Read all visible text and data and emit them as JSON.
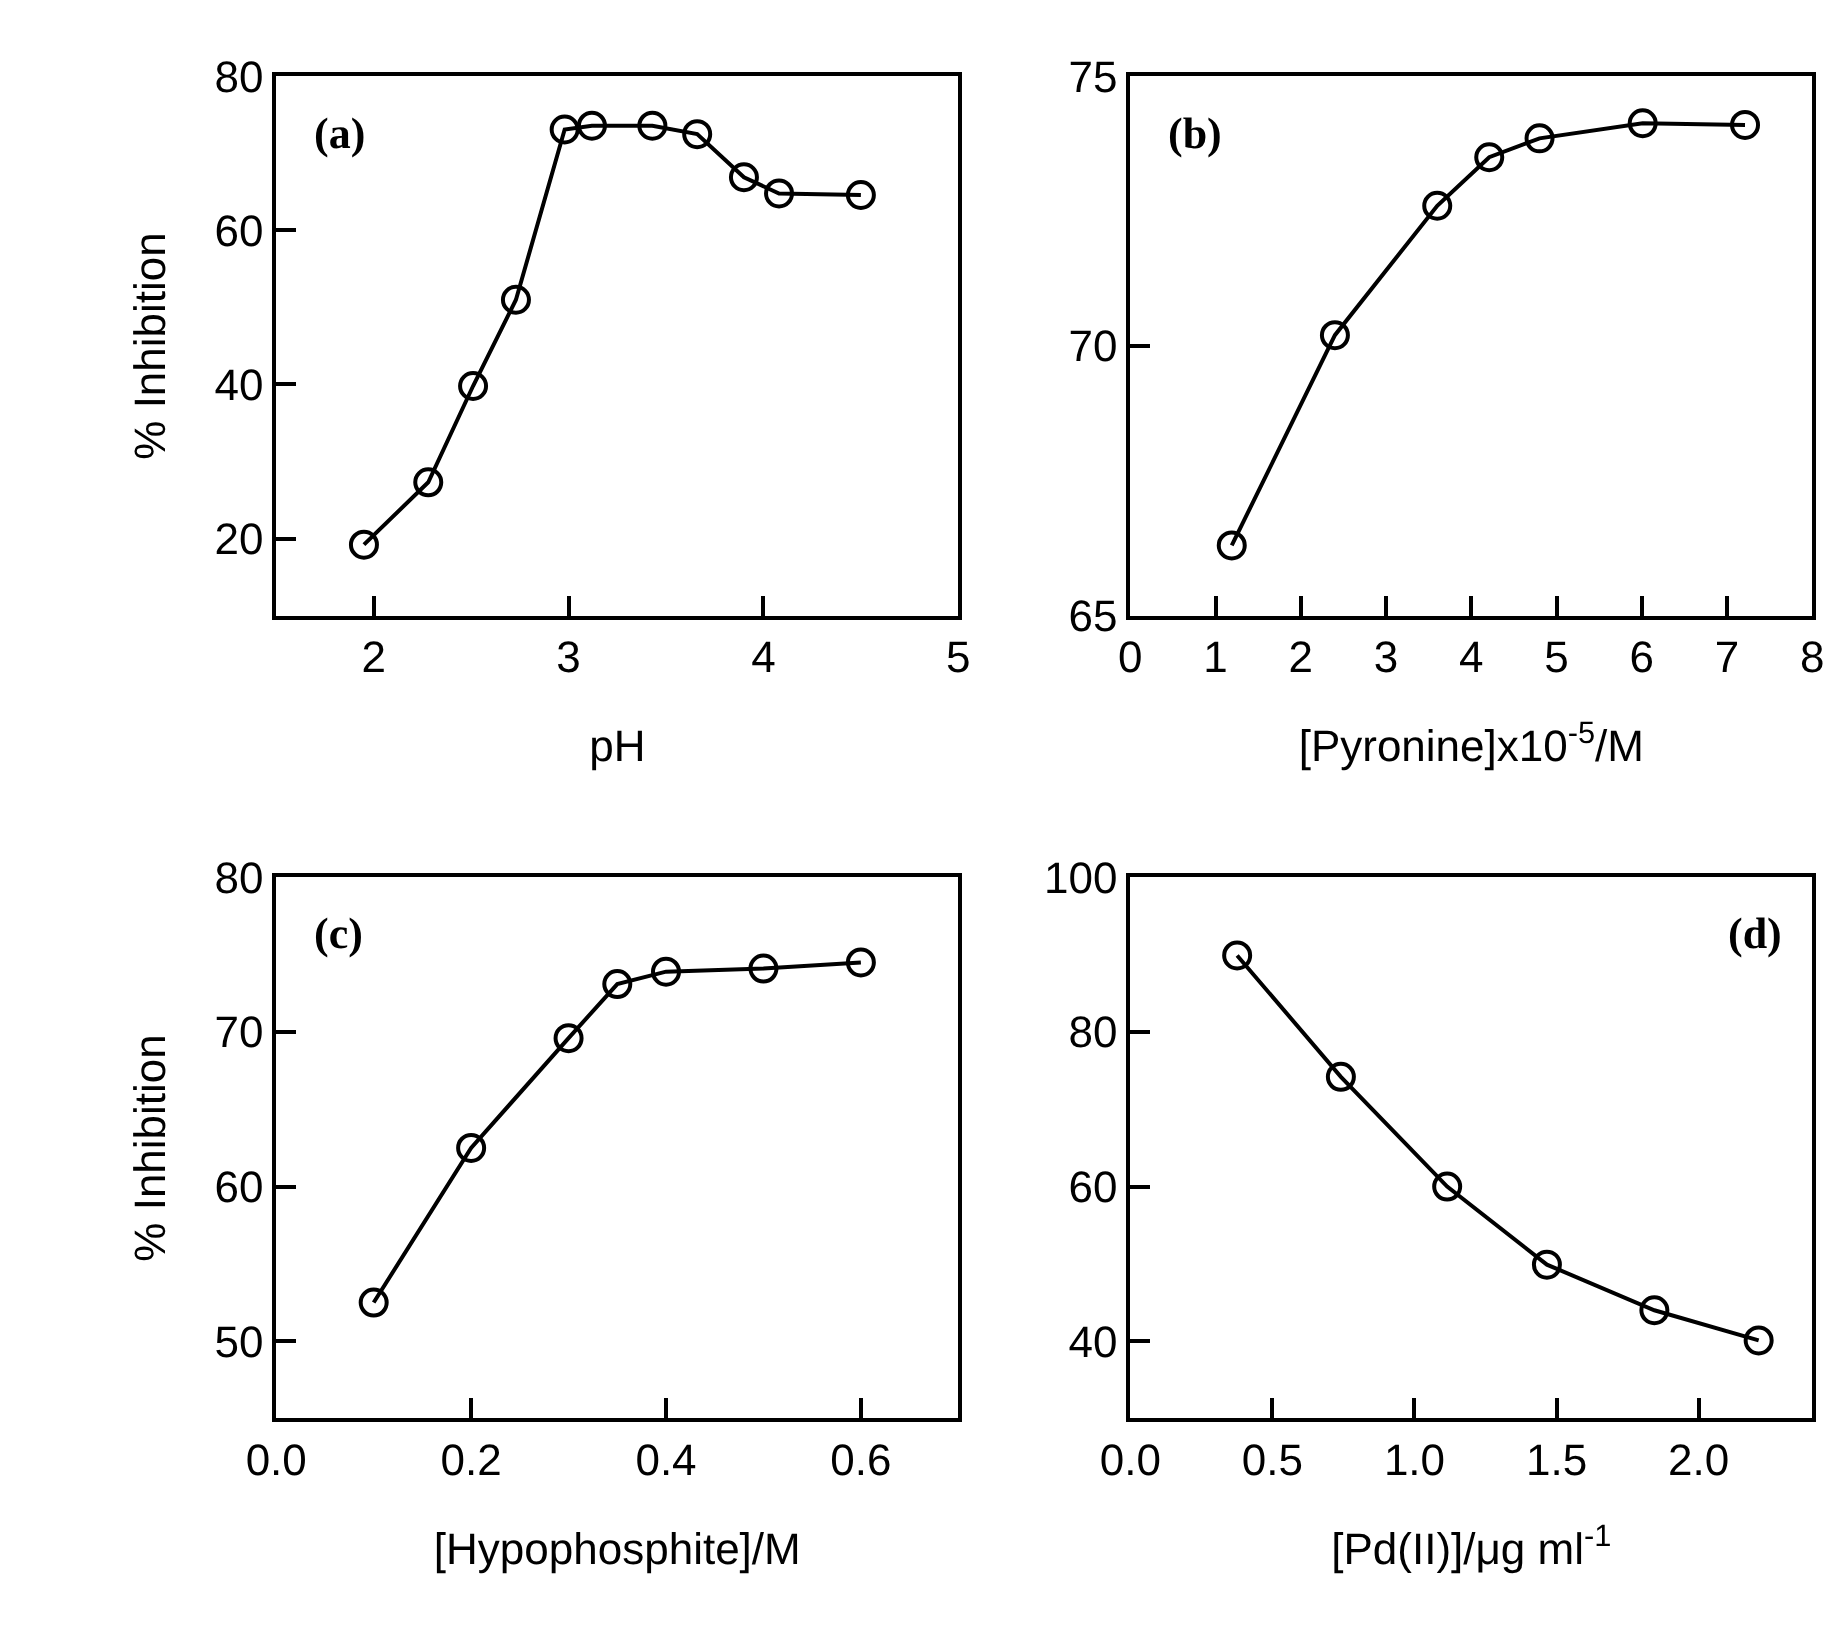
{
  "chart_data": [
    {
      "type": "line",
      "xlabel": "pH",
      "ylabel": "% Inhibition",
      "annotations": [
        "(a)"
      ],
      "x": [
        1.95,
        2.28,
        2.51,
        2.73,
        2.98,
        3.12,
        3.43,
        3.66,
        3.9,
        4.08,
        4.5
      ],
      "series": [
        {
          "color": "#000000",
          "values": [
            19.2,
            27.3,
            39.8,
            51.0,
            73.1,
            73.6,
            73.6,
            72.5,
            66.9,
            64.8,
            64.6
          ]
        }
      ],
      "xlim": [
        1.5,
        5
      ],
      "xticks": [
        2,
        3,
        4,
        5
      ],
      "ylim": [
        10,
        80
      ],
      "yticks": [
        20,
        40,
        60,
        80
      ],
      "marker": "circle",
      "line_style": "solid"
    },
    {
      "type": "line",
      "xlabel": "[Pyronine]x10$^{-5}$/M",
      "annotations": [
        "(b)"
      ],
      "x": [
        1.19,
        2.4,
        3.6,
        4.21,
        4.8,
        6.01,
        7.21
      ],
      "series": [
        {
          "color": "#000000",
          "values": [
            66.3,
            70.2,
            72.6,
            73.5,
            73.85,
            74.13,
            74.1
          ]
        }
      ],
      "xlim": [
        0,
        8
      ],
      "xticks": [
        0,
        1,
        2,
        3,
        4,
        5,
        6,
        7,
        8
      ],
      "ylim": [
        65,
        75
      ],
      "yticks": [
        65,
        70,
        75
      ],
      "marker": "circle",
      "line_style": "solid"
    },
    {
      "type": "line",
      "xlabel": "[Hypophosphite]/M",
      "ylabel": "% Inhibition",
      "annotations": [
        "(c)"
      ],
      "x": [
        0.1,
        0.2,
        0.3,
        0.35,
        0.4,
        0.5,
        0.6
      ],
      "series": [
        {
          "color": "#000000",
          "values": [
            52.5,
            62.5,
            69.6,
            73.1,
            73.9,
            74.1,
            74.5
          ]
        }
      ],
      "xlim": [
        0,
        0.7
      ],
      "xticks": [
        {
          "value": 0,
          "label": "0.0"
        },
        0.2,
        0.4,
        0.6
      ],
      "ylim": [
        45,
        80
      ],
      "yticks": [
        50,
        60,
        70,
        80
      ],
      "marker": "circle",
      "line_style": "solid"
    },
    {
      "type": "line",
      "xlabel": "[Pd(II)]/μg ml$^{-1}$",
      "annotations": [
        "(d)"
      ],
      "x": [
        0.376,
        0.741,
        1.115,
        1.466,
        1.844,
        2.211
      ],
      "series": [
        {
          "color": "#000000",
          "values": [
            89.9,
            74.2,
            60.0,
            49.9,
            44.0,
            40.1
          ]
        }
      ],
      "xlim": [
        0,
        2.4
      ],
      "xticks": [
        {
          "value": 0,
          "label": "0.0"
        },
        0.5,
        {
          "value": 1,
          "label": "1.0"
        },
        1.5,
        {
          "value": 2,
          "label": "2.0"
        }
      ],
      "ylim": [
        30,
        100
      ],
      "yticks": [
        40,
        60,
        80,
        100
      ],
      "marker": "circle",
      "line_style": "solid"
    }
  ]
}
